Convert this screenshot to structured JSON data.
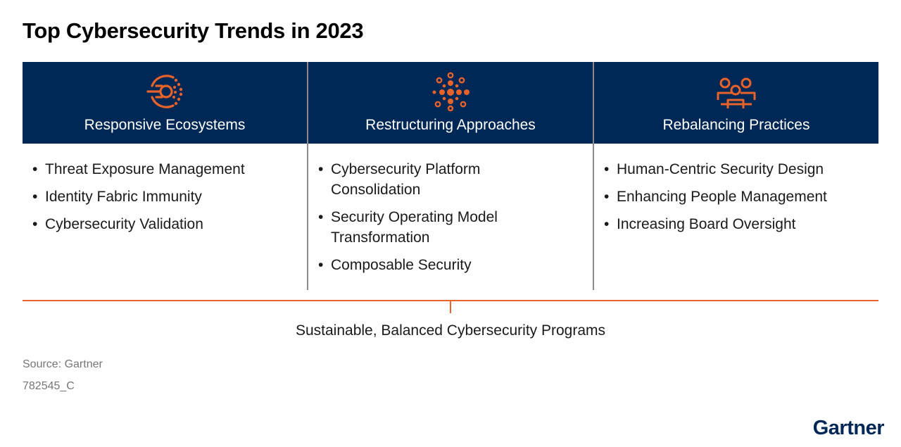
{
  "title": "Top Cybersecurity Trends in 2023",
  "columns": [
    {
      "title": "Responsive Ecosystems",
      "icon": "radar-target-icon",
      "items": [
        "Threat Exposure Management",
        "Identity Fabric Immunity",
        "Cybersecurity Validation"
      ]
    },
    {
      "title": "Restructuring Approaches",
      "icon": "network-dots-icon",
      "items": [
        "Cybersecurity Platform Consolidation",
        "Security Operating Model Transformation",
        "Composable Security"
      ]
    },
    {
      "title": "Rebalancing Practices",
      "icon": "people-group-icon",
      "items": [
        "Human-Centric Security Design",
        "Enhancing People Management",
        "Increasing Board Oversight"
      ]
    }
  ],
  "footer_label": "Sustainable, Balanced Cybersecurity Programs",
  "source": "Source: Gartner",
  "doc_id": "782545_C",
  "logo": "Gartner",
  "colors": {
    "header_bg": "#002856",
    "accent": "#e8632a",
    "text": "#1a1a1a",
    "muted": "#767676"
  }
}
